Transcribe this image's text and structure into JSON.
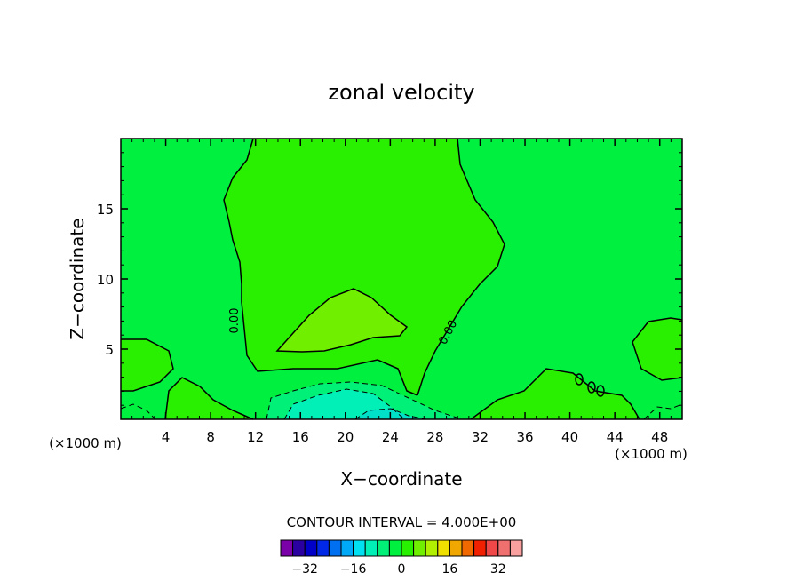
{
  "chart_data": {
    "type": "heatmap",
    "title": "zonal velocity",
    "xlabel": "X−coordinate",
    "ylabel": "Z−coordinate",
    "x_unit_left": "(×1000 m)",
    "x_unit_right": "(×1000 m)",
    "xlim": [
      0,
      50
    ],
    "ylim": [
      0,
      20
    ],
    "x_ticks": [
      4,
      8,
      12,
      16,
      20,
      24,
      28,
      32,
      36,
      40,
      44,
      48
    ],
    "x_tick_labels": [
      "4",
      "8",
      "12",
      "16",
      "20",
      "24",
      "28",
      "32",
      "36",
      "40",
      "44",
      "48"
    ],
    "y_ticks": [
      5,
      10,
      15
    ],
    "y_tick_labels": [
      "5",
      "10",
      "15"
    ],
    "contour_interval_text": "CONTOUR INTERVAL = 4.000E+00",
    "zero_contour_labels": [
      "0.00",
      "0.00"
    ],
    "colorbar": {
      "tick_values": [
        -32,
        -16,
        0,
        16,
        32
      ],
      "tick_labels": [
        "−32",
        "−16",
        "0",
        "16",
        "32"
      ],
      "colors": [
        "#7a00a8",
        "#2a00a0",
        "#0000c8",
        "#0028e6",
        "#0070f0",
        "#00a8f8",
        "#00e0f0",
        "#00f0b8",
        "#00f078",
        "#00f040",
        "#28f000",
        "#70f000",
        "#b0f000",
        "#f0e000",
        "#f0a800",
        "#f06800",
        "#f02000",
        "#f04848",
        "#f07070",
        "#f8a0a0"
      ]
    },
    "field_colors": {
      "background": "#00f040",
      "positive_band": "#28f000",
      "max_band": "#70f000",
      "negative_band": "#00f078",
      "min_band": "#00f0b8",
      "min_core": "#00e0c8"
    }
  }
}
